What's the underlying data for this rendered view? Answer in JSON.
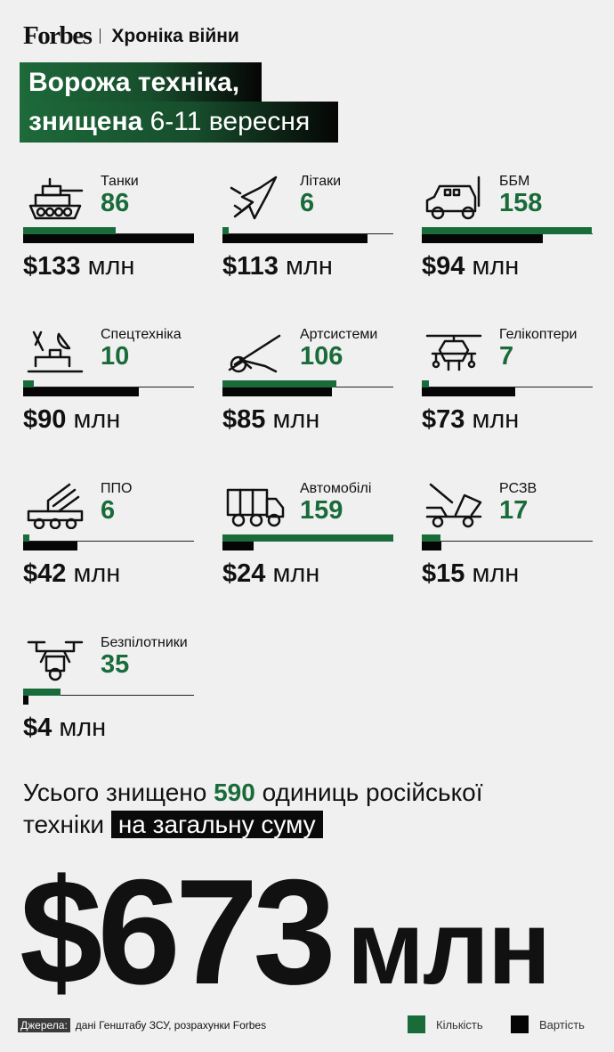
{
  "header": {
    "logo": "Forbes",
    "section": "Хроніка війни"
  },
  "title": {
    "line1": "Ворожа техніка,",
    "line2_bold": "знищена",
    "line2_light": "6-11 вересня"
  },
  "colors": {
    "quantity": "#1a6b3a",
    "cost": "#050505",
    "background": "#f0f0f0"
  },
  "chart_data": {
    "type": "bar",
    "categories": [
      "Танки",
      "Літаки",
      "ББМ",
      "Спецтехніка",
      "Артсистеми",
      "Гелікоптери",
      "ППО",
      "Автомобілі",
      "РСЗВ",
      "Безпілотники"
    ],
    "series": [
      {
        "name": "Кількість",
        "values": [
          86,
          6,
          158,
          10,
          106,
          7,
          6,
          159,
          17,
          35
        ]
      },
      {
        "name": "Вартість",
        "values": [
          133,
          113,
          94,
          90,
          85,
          73,
          42,
          24,
          15,
          4
        ]
      }
    ],
    "count_labels": [
      "86",
      "6",
      "158",
      "10",
      "106",
      "7",
      "6",
      "159",
      "17",
      "35"
    ],
    "cost_labels": [
      "$133",
      "$113",
      "$94",
      "$90",
      "$85",
      "$73",
      "$42",
      "$24",
      "$15",
      "$4"
    ],
    "cost_unit": "млн",
    "icons": [
      "tank-icon",
      "plane-icon",
      "armored-vehicle-icon",
      "radar-icon",
      "artillery-icon",
      "helicopter-icon",
      "air-defense-icon",
      "truck-icon",
      "rocket-launcher-icon",
      "drone-icon"
    ]
  },
  "summary": {
    "pre": "Усього знищено",
    "count": "590",
    "mid": "одиниць російської",
    "line2": "техніки",
    "highlight": "на загальну суму"
  },
  "total": {
    "amount": "$673",
    "unit": "млн"
  },
  "footer": {
    "source_label": "Джерела:",
    "source_text": "дані Генштабу ЗСУ, розрахунки Forbes"
  },
  "legend": {
    "quantity": "Кількість",
    "cost": "Вартість"
  }
}
